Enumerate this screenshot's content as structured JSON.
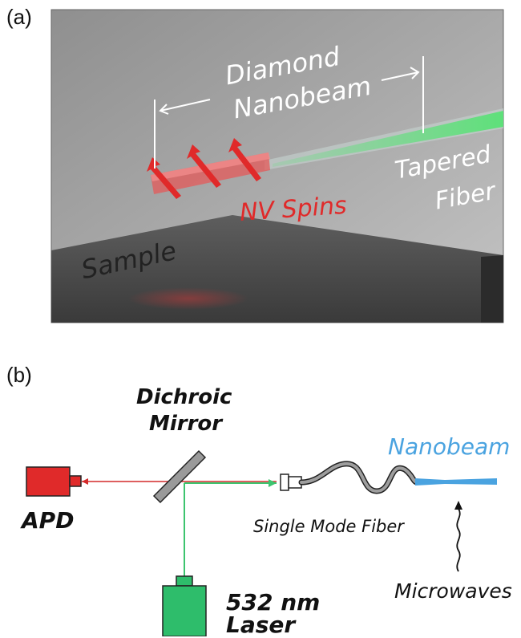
{
  "panel_a": {
    "label": "(a)",
    "text": {
      "nanobeam_line1": "Diamond",
      "nanobeam_line2": "Nanobeam",
      "fiber_line1": "Tapered",
      "fiber_line2": "Fiber",
      "spins": "NV Spins",
      "sample": "Sample"
    },
    "colors": {
      "spins": "#e02a2a",
      "fiber_glow": "#5ee07a",
      "annotation": "#ffffff"
    }
  },
  "panel_b": {
    "label": "(b)",
    "text": {
      "mirror_line1": "Dichroic",
      "mirror_line2": "Mirror",
      "nanobeam": "Nanobeam",
      "apd": "APD",
      "fiber": "Single Mode Fiber",
      "laser_line1": "532 nm",
      "laser_line2": "Laser",
      "microwaves": "Microwaves"
    },
    "colors": {
      "apd": "#e02a2a",
      "laser": "#2ebd6b",
      "nanobeam": "#4aa3e0",
      "green_beam": "#3cc46e",
      "red_beam": "#d42a2a"
    }
  }
}
